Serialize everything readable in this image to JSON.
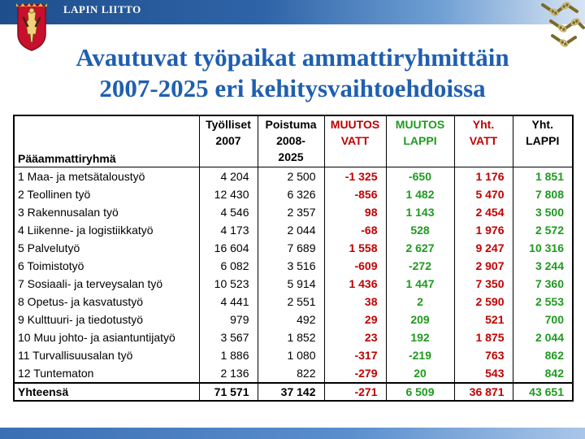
{
  "header": {
    "organization": "LAPIN LIITTO",
    "colors": {
      "band": "#2e64a8",
      "title_text": "#1f5fb0",
      "vatt": "#c00000",
      "lappi": "#1f9a1f"
    }
  },
  "icons": {
    "left_logo": "coat-of-arms-icon",
    "right_logo": "chain-emblem-icon"
  },
  "slide": {
    "title_line1": "Avautuvat työpaikat ammattiryhmittäin",
    "title_line2": "2007-2025 eri kehitysvaihtoehdoissa"
  },
  "table": {
    "headers": {
      "group": "Pääammattiryhmä",
      "employed": [
        "Työlliset",
        "2007"
      ],
      "retirement": [
        "Poistuma",
        "2008-",
        "2025"
      ],
      "change_vatt": [
        "MUUTOS",
        "VATT"
      ],
      "change_lappi": [
        "MUUTOS",
        "LAPPI"
      ],
      "total_vatt": [
        "Yht.",
        "VATT"
      ],
      "total_lappi": [
        "Yht.",
        "LAPPI"
      ]
    },
    "rows": [
      {
        "group": "1 Maa- ja metsätaloustyö",
        "employed": "4 204",
        "retirement": "2 500",
        "change_vatt": "-1 325",
        "change_lappi": "-650",
        "total_vatt": "1 176",
        "total_lappi": "1 851"
      },
      {
        "group": "2 Teollinen työ",
        "employed": "12 430",
        "retirement": "6 326",
        "change_vatt": "-856",
        "change_lappi": "1 482",
        "total_vatt": "5 470",
        "total_lappi": "7 808"
      },
      {
        "group": "3 Rakennusalan työ",
        "employed": "4 546",
        "retirement": "2 357",
        "change_vatt": "98",
        "change_lappi": "1 143",
        "total_vatt": "2 454",
        "total_lappi": "3 500"
      },
      {
        "group": "4 Liikenne- ja logistiikkatyö",
        "employed": "4 173",
        "retirement": "2 044",
        "change_vatt": "-68",
        "change_lappi": "528",
        "total_vatt": "1 976",
        "total_lappi": "2 572"
      },
      {
        "group": "5 Palvelutyö",
        "employed": "16 604",
        "retirement": "7 689",
        "change_vatt": "1 558",
        "change_lappi": "2 627",
        "total_vatt": "9 247",
        "total_lappi": "10 316"
      },
      {
        "group": "6 Toimistotyö",
        "employed": "6 082",
        "retirement": "3 516",
        "change_vatt": "-609",
        "change_lappi": "-272",
        "total_vatt": "2 907",
        "total_lappi": "3 244"
      },
      {
        "group": "7 Sosiaali- ja terveysalan työ",
        "employed": "10 523",
        "retirement": "5 914",
        "change_vatt": "1 436",
        "change_lappi": "1 447",
        "total_vatt": "7 350",
        "total_lappi": "7 360"
      },
      {
        "group": "8 Opetus- ja kasvatustyö",
        "employed": "4 441",
        "retirement": "2 551",
        "change_vatt": "38",
        "change_lappi": "2",
        "total_vatt": "2 590",
        "total_lappi": "2 553"
      },
      {
        "group": "9 Kulttuuri- ja tiedotustyö",
        "employed": "979",
        "retirement": "492",
        "change_vatt": "29",
        "change_lappi": "209",
        "total_vatt": "521",
        "total_lappi": "700"
      },
      {
        "group": "10 Muu johto- ja asiantuntijatyö",
        "employed": "3 567",
        "retirement": "1 852",
        "change_vatt": "23",
        "change_lappi": "192",
        "total_vatt": "1 875",
        "total_lappi": "2 044"
      },
      {
        "group": "11 Turvallisuusalan työ",
        "employed": "1 886",
        "retirement": "1 080",
        "change_vatt": "-317",
        "change_lappi": "-219",
        "total_vatt": "763",
        "total_lappi": "862"
      },
      {
        "group": "12 Tuntematon",
        "employed": "2 136",
        "retirement": "822",
        "change_vatt": "-279",
        "change_lappi": "20",
        "total_vatt": "543",
        "total_lappi": "842"
      }
    ],
    "total": {
      "group": "Yhteensä",
      "employed": "71 571",
      "retirement": "37 142",
      "change_vatt": "-271",
      "change_lappi": "6 509",
      "total_vatt": "36 871",
      "total_lappi": "43 651"
    }
  }
}
